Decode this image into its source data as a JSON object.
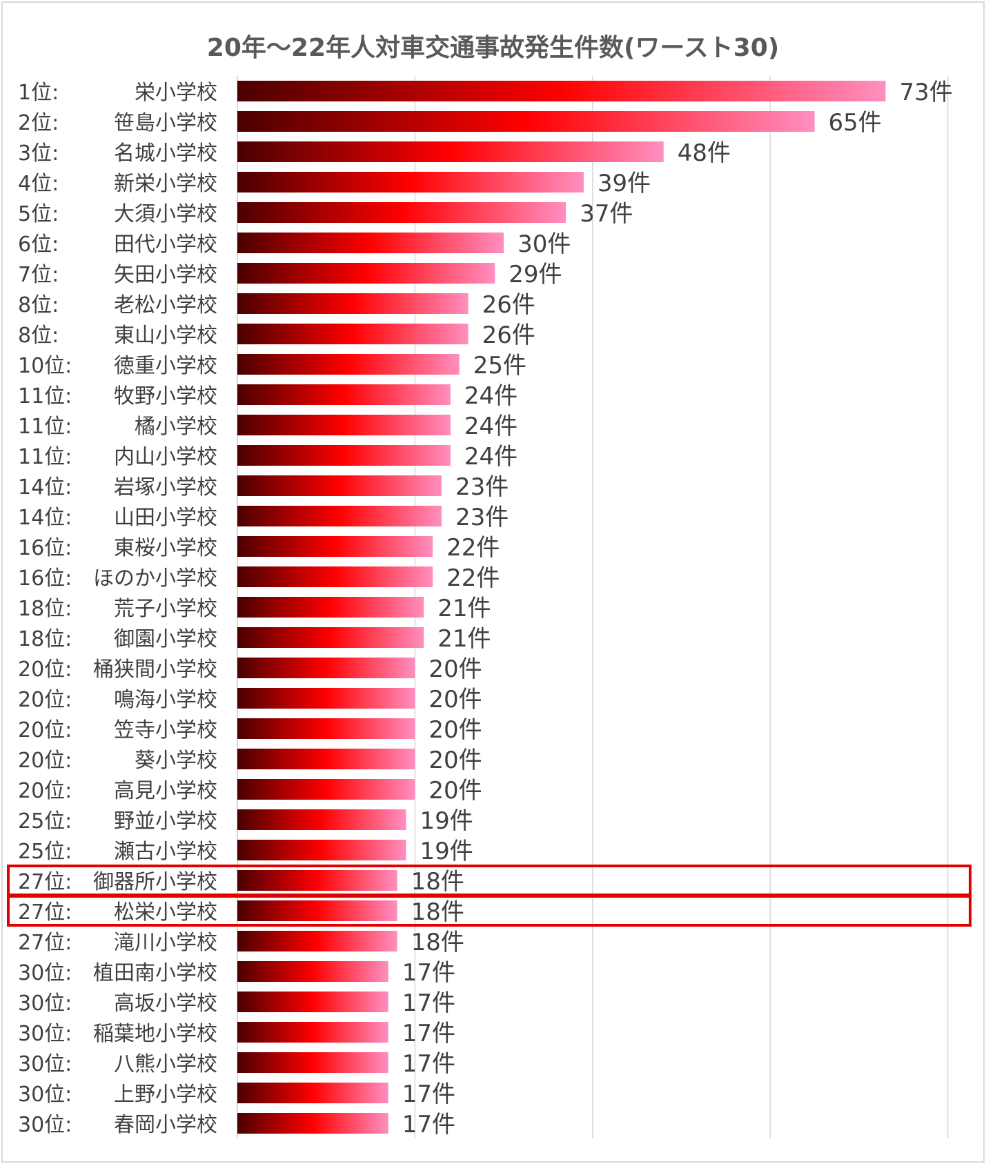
{
  "chart_data": {
    "type": "bar",
    "orientation": "horizontal",
    "title": "20年～22年人対車交通事故発生件数(ワースト30)",
    "xlim": [
      0,
      80
    ],
    "grid": true,
    "value_suffix": "件",
    "categories": [
      {
        "rank": "1位:",
        "school": "栄小学校"
      },
      {
        "rank": "2位:",
        "school": "笹島小学校"
      },
      {
        "rank": "3位:",
        "school": "名城小学校"
      },
      {
        "rank": "4位:",
        "school": "新栄小学校"
      },
      {
        "rank": "5位:",
        "school": "大須小学校"
      },
      {
        "rank": "6位:",
        "school": "田代小学校"
      },
      {
        "rank": "7位:",
        "school": "矢田小学校"
      },
      {
        "rank": "8位:",
        "school": "老松小学校"
      },
      {
        "rank": "8位:",
        "school": "東山小学校"
      },
      {
        "rank": "10位:",
        "school": "徳重小学校"
      },
      {
        "rank": "11位:",
        "school": "牧野小学校"
      },
      {
        "rank": "11位:",
        "school": "橘小学校"
      },
      {
        "rank": "11位:",
        "school": "内山小学校"
      },
      {
        "rank": "14位:",
        "school": "岩塚小学校"
      },
      {
        "rank": "14位:",
        "school": "山田小学校"
      },
      {
        "rank": "16位:",
        "school": "東桜小学校"
      },
      {
        "rank": "16位:",
        "school": "ほのか小学校"
      },
      {
        "rank": "18位:",
        "school": "荒子小学校"
      },
      {
        "rank": "18位:",
        "school": "御園小学校"
      },
      {
        "rank": "20位:",
        "school": "桶狭間小学校"
      },
      {
        "rank": "20位:",
        "school": "鳴海小学校"
      },
      {
        "rank": "20位:",
        "school": "笠寺小学校"
      },
      {
        "rank": "20位:",
        "school": "葵小学校"
      },
      {
        "rank": "20位:",
        "school": "高見小学校"
      },
      {
        "rank": "25位:",
        "school": "野並小学校"
      },
      {
        "rank": "25位:",
        "school": "瀬古小学校"
      },
      {
        "rank": "27位:",
        "school": "御器所小学校"
      },
      {
        "rank": "27位:",
        "school": "松栄小学校"
      },
      {
        "rank": "27位:",
        "school": "滝川小学校"
      },
      {
        "rank": "30位:",
        "school": "植田南小学校"
      },
      {
        "rank": "30位:",
        "school": "高坂小学校"
      },
      {
        "rank": "30位:",
        "school": "稲葉地小学校"
      },
      {
        "rank": "30位:",
        "school": "八熊小学校"
      },
      {
        "rank": "30位:",
        "school": "上野小学校"
      },
      {
        "rank": "30位:",
        "school": "春岡小学校"
      }
    ],
    "values": [
      73,
      65,
      48,
      39,
      37,
      30,
      29,
      26,
      26,
      25,
      24,
      24,
      24,
      23,
      23,
      22,
      22,
      21,
      21,
      20,
      20,
      20,
      20,
      20,
      19,
      19,
      18,
      18,
      18,
      17,
      17,
      17,
      17,
      17,
      17
    ],
    "highlighted_rows": [
      26,
      27
    ],
    "colors": {
      "bar_gradient": [
        "#4a0000",
        "#ff0000",
        "#ff8fc0"
      ],
      "highlight_border": "#e00000",
      "label_text": "#404040",
      "grid": "#d9d9d9",
      "title_text": "#595959"
    }
  }
}
